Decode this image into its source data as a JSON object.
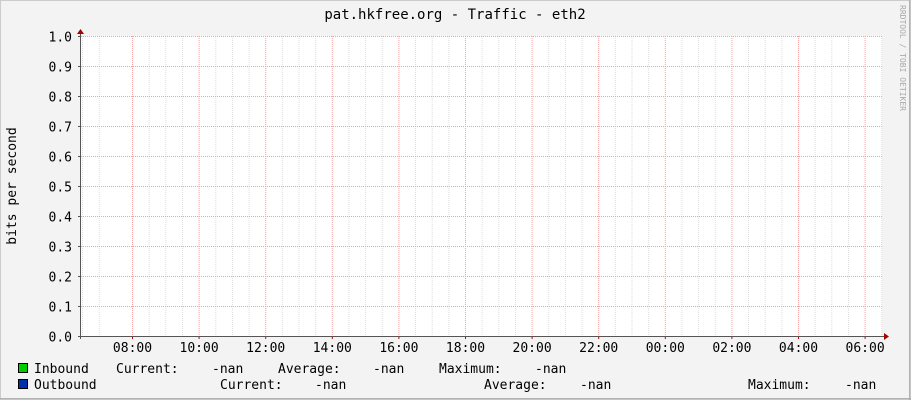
{
  "chart_data": {
    "type": "line",
    "title": "pat.hkfree.org - Traffic - eth2",
    "ylabel": "bits per second",
    "xlabel": "",
    "ylim": [
      0,
      1.0
    ],
    "yticks": [
      "0.0",
      "0.1",
      "0.2",
      "0.3",
      "0.4",
      "0.5",
      "0.6",
      "0.7",
      "0.8",
      "0.9",
      "1.0"
    ],
    "xticks": [
      "08:00",
      "10:00",
      "12:00",
      "14:00",
      "16:00",
      "18:00",
      "20:00",
      "22:00",
      "00:00",
      "02:00",
      "04:00",
      "06:00"
    ],
    "grid": true,
    "watermark": "RRDTOOL / TOBI OETIKER",
    "series": [
      {
        "name": "Inbound",
        "color": "#00cc00",
        "values": [],
        "current": "-nan",
        "average": "-nan",
        "maximum": "-nan"
      },
      {
        "name": "Outbound",
        "color": "#0033aa",
        "values": [],
        "current": "-nan",
        "average": "-nan",
        "maximum": "-nan"
      }
    ],
    "legend_labels": {
      "current": "Current:",
      "average": "Average:",
      "maximum": "Maximum:"
    },
    "legend_placement": "bottom"
  }
}
